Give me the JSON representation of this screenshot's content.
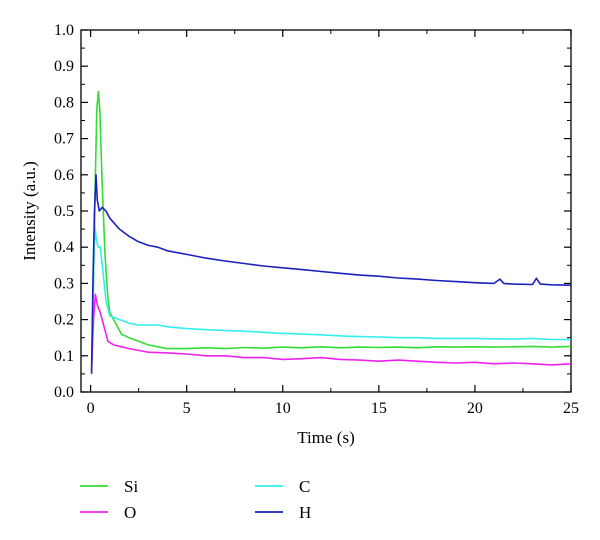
{
  "chart_data": {
    "type": "line",
    "xlabel": "Time (s)",
    "ylabel": "Intensity (a.u.)",
    "xlim": [
      -0.5,
      25
    ],
    "ylim": [
      0.0,
      1.0
    ],
    "xticks": [
      0,
      5,
      10,
      15,
      20,
      25
    ],
    "yticks": [
      0.0,
      0.1,
      0.2,
      0.3,
      0.4,
      0.5,
      0.6,
      0.7,
      0.8,
      0.9,
      1.0
    ],
    "x_tick_labels": [
      "0",
      "5",
      "10",
      "15",
      "20",
      "25"
    ],
    "y_tick_labels": [
      "0.0",
      "0.1",
      "0.2",
      "0.3",
      "0.4",
      "0.5",
      "0.6",
      "0.7",
      "0.8",
      "0.9",
      "1.0"
    ],
    "grid": false,
    "legend_position": "bottom",
    "series": [
      {
        "name": "Si",
        "color": "#33dd33",
        "points": [
          [
            0.05,
            0.06
          ],
          [
            0.15,
            0.3
          ],
          [
            0.25,
            0.6
          ],
          [
            0.32,
            0.78
          ],
          [
            0.4,
            0.83
          ],
          [
            0.48,
            0.78
          ],
          [
            0.6,
            0.58
          ],
          [
            0.75,
            0.38
          ],
          [
            0.9,
            0.26
          ],
          [
            1.0,
            0.22
          ],
          [
            1.3,
            0.19
          ],
          [
            1.6,
            0.16
          ],
          [
            2.0,
            0.15
          ],
          [
            2.5,
            0.14
          ],
          [
            3.0,
            0.13
          ],
          [
            3.5,
            0.125
          ],
          [
            4.0,
            0.12
          ],
          [
            5.0,
            0.12
          ],
          [
            6.0,
            0.122
          ],
          [
            7.0,
            0.12
          ],
          [
            8.0,
            0.123
          ],
          [
            9.0,
            0.121
          ],
          [
            10.0,
            0.124
          ],
          [
            11.0,
            0.122
          ],
          [
            12.0,
            0.125
          ],
          [
            13.0,
            0.122
          ],
          [
            14.0,
            0.124
          ],
          [
            15.0,
            0.123
          ],
          [
            16.0,
            0.124
          ],
          [
            17.0,
            0.122
          ],
          [
            18.0,
            0.125
          ],
          [
            19.0,
            0.124
          ],
          [
            20.0,
            0.125
          ],
          [
            21.0,
            0.124
          ],
          [
            22.0,
            0.125
          ],
          [
            23.0,
            0.126
          ],
          [
            24.0,
            0.124
          ],
          [
            25.0,
            0.126
          ]
        ]
      },
      {
        "name": "C",
        "color": "#33eeee",
        "points": [
          [
            0.05,
            0.08
          ],
          [
            0.15,
            0.33
          ],
          [
            0.22,
            0.46
          ],
          [
            0.3,
            0.42
          ],
          [
            0.4,
            0.4
          ],
          [
            0.5,
            0.4
          ],
          [
            0.65,
            0.33
          ],
          [
            0.8,
            0.25
          ],
          [
            1.0,
            0.21
          ],
          [
            1.5,
            0.2
          ],
          [
            2.0,
            0.19
          ],
          [
            2.5,
            0.185
          ],
          [
            3.0,
            0.185
          ],
          [
            3.5,
            0.185
          ],
          [
            4.0,
            0.18
          ],
          [
            5.0,
            0.175
          ],
          [
            6.0,
            0.172
          ],
          [
            7.0,
            0.17
          ],
          [
            8.0,
            0.168
          ],
          [
            9.0,
            0.165
          ],
          [
            10.0,
            0.162
          ],
          [
            11.0,
            0.16
          ],
          [
            12.0,
            0.158
          ],
          [
            13.0,
            0.155
          ],
          [
            14.0,
            0.153
          ],
          [
            15.0,
            0.152
          ],
          [
            16.0,
            0.15
          ],
          [
            17.0,
            0.15
          ],
          [
            18.0,
            0.148
          ],
          [
            19.0,
            0.148
          ],
          [
            20.0,
            0.148
          ],
          [
            21.0,
            0.147
          ],
          [
            22.0,
            0.146
          ],
          [
            23.0,
            0.148
          ],
          [
            24.0,
            0.145
          ],
          [
            25.0,
            0.145
          ]
        ]
      },
      {
        "name": "O",
        "color": "#ee22ee",
        "points": [
          [
            0.05,
            0.06
          ],
          [
            0.15,
            0.2
          ],
          [
            0.25,
            0.27
          ],
          [
            0.35,
            0.24
          ],
          [
            0.5,
            0.22
          ],
          [
            0.7,
            0.18
          ],
          [
            0.9,
            0.14
          ],
          [
            1.2,
            0.13
          ],
          [
            1.6,
            0.125
          ],
          [
            2.0,
            0.12
          ],
          [
            2.5,
            0.115
          ],
          [
            3.0,
            0.11
          ],
          [
            4.0,
            0.108
          ],
          [
            5.0,
            0.105
          ],
          [
            6.0,
            0.1
          ],
          [
            7.0,
            0.1
          ],
          [
            8.0,
            0.095
          ],
          [
            9.0,
            0.095
          ],
          [
            10.0,
            0.09
          ],
          [
            11.0,
            0.092
          ],
          [
            12.0,
            0.095
          ],
          [
            13.0,
            0.09
          ],
          [
            14.0,
            0.088
          ],
          [
            15.0,
            0.085
          ],
          [
            16.0,
            0.088
          ],
          [
            17.0,
            0.085
          ],
          [
            18.0,
            0.082
          ],
          [
            19.0,
            0.08
          ],
          [
            20.0,
            0.082
          ],
          [
            21.0,
            0.078
          ],
          [
            22.0,
            0.08
          ],
          [
            23.0,
            0.078
          ],
          [
            24.0,
            0.075
          ],
          [
            25.0,
            0.078
          ]
        ]
      },
      {
        "name": "H",
        "color": "#1a22bb",
        "points": [
          [
            0.05,
            0.05
          ],
          [
            0.12,
            0.3
          ],
          [
            0.2,
            0.5
          ],
          [
            0.28,
            0.6
          ],
          [
            0.35,
            0.53
          ],
          [
            0.45,
            0.5
          ],
          [
            0.6,
            0.51
          ],
          [
            0.8,
            0.5
          ],
          [
            1.0,
            0.48
          ],
          [
            1.5,
            0.45
          ],
          [
            2.0,
            0.43
          ],
          [
            2.5,
            0.415
          ],
          [
            3.0,
            0.405
          ],
          [
            3.5,
            0.4
          ],
          [
            4.0,
            0.39
          ],
          [
            5.0,
            0.38
          ],
          [
            6.0,
            0.37
          ],
          [
            7.0,
            0.362
          ],
          [
            8.0,
            0.355
          ],
          [
            9.0,
            0.348
          ],
          [
            10.0,
            0.343
          ],
          [
            11.0,
            0.338
          ],
          [
            12.0,
            0.333
          ],
          [
            13.0,
            0.328
          ],
          [
            14.0,
            0.323
          ],
          [
            15.0,
            0.32
          ],
          [
            16.0,
            0.315
          ],
          [
            17.0,
            0.312
          ],
          [
            18.0,
            0.308
          ],
          [
            19.0,
            0.305
          ],
          [
            20.0,
            0.302
          ],
          [
            21.0,
            0.3
          ],
          [
            21.3,
            0.312
          ],
          [
            21.5,
            0.3
          ],
          [
            22.0,
            0.298
          ],
          [
            23.0,
            0.297
          ],
          [
            23.2,
            0.314
          ],
          [
            23.4,
            0.298
          ],
          [
            24.0,
            0.296
          ],
          [
            25.0,
            0.295
          ]
        ]
      }
    ]
  }
}
